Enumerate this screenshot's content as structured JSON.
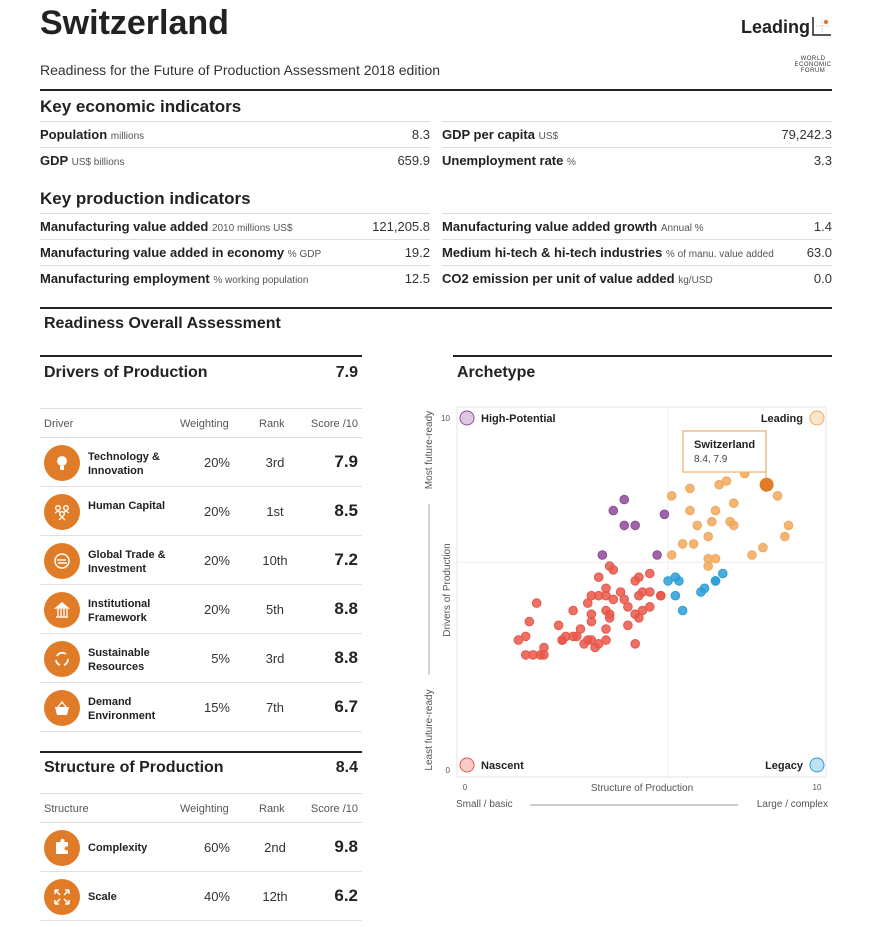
{
  "header": {
    "title": "Switzerland",
    "subtitle": "Readiness for the Future of Production Assessment 2018 edition",
    "archetype_badge": "Leading",
    "logo_text": "WORLD ECONOMIC FORUM"
  },
  "economic": {
    "heading": "Key economic indicators",
    "left": [
      {
        "label": "Population",
        "unit": "millions",
        "value": "8.3"
      },
      {
        "label": "GDP",
        "unit": "US$ billions",
        "value": "659.9"
      }
    ],
    "right": [
      {
        "label": "GDP per capita",
        "unit": "US$",
        "value": "79,242.3"
      },
      {
        "label": "Unemployment rate",
        "unit": "%",
        "value": "3.3"
      }
    ]
  },
  "production": {
    "heading": "Key production indicators",
    "left": [
      {
        "label": "Manufacturing value added",
        "unit": "2010 millions US$",
        "value": "121,205.8"
      },
      {
        "label": "Manufacturing value added in economy",
        "unit": "% GDP",
        "value": "19.2"
      },
      {
        "label": "Manufacturing employment",
        "unit": "% working population",
        "value": "12.5"
      }
    ],
    "right": [
      {
        "label": "Manufacturing value added growth",
        "unit": "Annual %",
        "value": "1.4"
      },
      {
        "label": "Medium hi-tech & hi-tech industries",
        "unit": "% of manu. value added",
        "value": "63.0"
      },
      {
        "label": "CO2 emission per unit of value added",
        "unit": "kg/USD",
        "value": "0.0"
      }
    ]
  },
  "assessment": {
    "heading": "Readiness Overall Assessment"
  },
  "drivers": {
    "title": "Drivers of Production",
    "score": "7.9",
    "columns": [
      "Driver",
      "Weighting",
      "Rank",
      "Score /10"
    ],
    "rows": [
      {
        "name": "Technology & Innovation",
        "weight": "20%",
        "rank": "3rd",
        "score": "7.9",
        "icon": "lightbulb-icon"
      },
      {
        "name": "Human Capital",
        "weight": "20%",
        "rank": "1st",
        "score": "8.5",
        "icon": "people-icon"
      },
      {
        "name": "Global Trade & Investment",
        "weight": "20%",
        "rank": "10th",
        "score": "7.2",
        "icon": "exchange-icon"
      },
      {
        "name": "Institutional Framework",
        "weight": "20%",
        "rank": "5th",
        "score": "8.8",
        "icon": "institution-icon"
      },
      {
        "name": "Sustainable Resources",
        "weight": "5%",
        "rank": "3rd",
        "score": "8.8",
        "icon": "recycle-icon"
      },
      {
        "name": "Demand Environment",
        "weight": "15%",
        "rank": "7th",
        "score": "6.7",
        "icon": "basket-icon"
      }
    ]
  },
  "structure": {
    "title": "Structure of Production",
    "score": "8.4",
    "columns": [
      "Structure",
      "Weighting",
      "Rank",
      "Score /10"
    ],
    "rows": [
      {
        "name": "Complexity",
        "weight": "60%",
        "rank": "2nd",
        "score": "9.8",
        "icon": "puzzle-icon"
      },
      {
        "name": "Scale",
        "weight": "40%",
        "rank": "12th",
        "score": "6.2",
        "icon": "expand-icon"
      }
    ]
  },
  "colors": {
    "accent": "#e07b28",
    "leading": "#f0a85a",
    "high_potential": "#8e4a9a",
    "legacy": "#2b9fd6",
    "nascent": "#e8574a"
  },
  "chart_data": {
    "type": "scatter",
    "title": "Archetype",
    "xlabel": "Structure of Production",
    "ylabel": "Drivers of Production",
    "y_top_label": "Most future-ready",
    "y_bottom_label": "Least future-ready",
    "x_left_label": "Small / basic",
    "x_right_label": "Large / complex",
    "xlim": [
      0,
      10
    ],
    "ylim": [
      0,
      10
    ],
    "x_ticks": [
      "0",
      "10"
    ],
    "y_ticks": [
      "0",
      "10"
    ],
    "quadrants": {
      "top_left": "High-Potential",
      "top_right": "Leading",
      "bottom_left": "Nascent",
      "bottom_right": "Legacy"
    },
    "thresholds": {
      "x": 5.7,
      "y": 5.8
    },
    "highlight": {
      "name": "Switzerland",
      "label": "8.4, 7.9",
      "x": 8.4,
      "y": 7.9
    },
    "series": [
      {
        "name": "High-Potential",
        "points": [
          [
            4.5,
            7.5
          ],
          [
            4.2,
            7.2
          ],
          [
            4.5,
            6.8
          ],
          [
            4.8,
            6.8
          ],
          [
            5.6,
            7.1
          ],
          [
            3.9,
            6.0
          ],
          [
            5.4,
            6.0
          ]
        ]
      },
      {
        "name": "Leading",
        "points": [
          [
            5.8,
            7.6
          ],
          [
            6.3,
            7.8
          ],
          [
            7.1,
            7.9
          ],
          [
            7.3,
            8.0
          ],
          [
            7.8,
            8.2
          ],
          [
            8.7,
            7.6
          ],
          [
            7.5,
            7.4
          ],
          [
            6.3,
            7.2
          ],
          [
            7.0,
            7.2
          ],
          [
            6.5,
            6.8
          ],
          [
            6.9,
            6.9
          ],
          [
            7.4,
            6.9
          ],
          [
            7.5,
            6.8
          ],
          [
            9.0,
            6.8
          ],
          [
            8.9,
            6.5
          ],
          [
            6.8,
            6.5
          ],
          [
            6.1,
            6.3
          ],
          [
            6.4,
            6.3
          ],
          [
            5.8,
            6.0
          ],
          [
            8.0,
            6.0
          ],
          [
            8.3,
            6.2
          ],
          [
            6.8,
            5.7
          ],
          [
            7.0,
            5.9
          ],
          [
            6.8,
            5.9
          ]
        ]
      },
      {
        "name": "Legacy",
        "points": [
          [
            5.7,
            5.3
          ],
          [
            5.9,
            5.4
          ],
          [
            6.0,
            5.3
          ],
          [
            5.9,
            4.9
          ],
          [
            6.1,
            4.5
          ],
          [
            6.6,
            5.0
          ],
          [
            6.7,
            5.1
          ],
          [
            7.0,
            5.3
          ],
          [
            7.2,
            5.5
          ],
          [
            7.0,
            5.3
          ]
        ]
      },
      {
        "name": "Nascent",
        "points": [
          [
            2.1,
            4.7
          ],
          [
            1.9,
            4.2
          ],
          [
            1.6,
            3.7
          ],
          [
            1.8,
            3.8
          ],
          [
            1.8,
            3.3
          ],
          [
            2.0,
            3.3
          ],
          [
            2.2,
            3.3
          ],
          [
            2.3,
            3.3
          ],
          [
            2.3,
            3.5
          ],
          [
            2.7,
            4.1
          ],
          [
            2.8,
            3.7
          ],
          [
            2.8,
            3.7
          ],
          [
            2.9,
            3.8
          ],
          [
            3.1,
            3.8
          ],
          [
            3.1,
            4.5
          ],
          [
            3.2,
            3.8
          ],
          [
            3.3,
            4.0
          ],
          [
            3.4,
            3.6
          ],
          [
            3.5,
            3.7
          ],
          [
            3.6,
            3.7
          ],
          [
            3.7,
            3.5
          ],
          [
            3.8,
            3.6
          ],
          [
            4.0,
            3.7
          ],
          [
            4.0,
            4.0
          ],
          [
            3.6,
            4.4
          ],
          [
            3.6,
            4.2
          ],
          [
            3.5,
            4.7
          ],
          [
            3.6,
            4.9
          ],
          [
            3.8,
            4.9
          ],
          [
            4.0,
            4.9
          ],
          [
            3.8,
            5.4
          ],
          [
            4.0,
            5.1
          ],
          [
            4.1,
            5.7
          ],
          [
            4.2,
            5.6
          ],
          [
            4.2,
            4.8
          ],
          [
            4.4,
            5.0
          ],
          [
            4.5,
            4.8
          ],
          [
            4.6,
            4.6
          ],
          [
            4.6,
            4.1
          ],
          [
            4.8,
            3.6
          ],
          [
            4.0,
            4.5
          ],
          [
            4.1,
            4.4
          ],
          [
            4.1,
            4.3
          ],
          [
            4.8,
            5.3
          ],
          [
            4.9,
            5.4
          ],
          [
            5.2,
            5.5
          ],
          [
            4.8,
            4.4
          ],
          [
            4.9,
            4.3
          ],
          [
            5.0,
            4.5
          ],
          [
            5.2,
            4.6
          ],
          [
            4.9,
            4.9
          ],
          [
            5.0,
            5.0
          ],
          [
            5.2,
            5.0
          ],
          [
            5.5,
            4.9
          ],
          [
            5.5,
            4.9
          ]
        ]
      }
    ]
  }
}
